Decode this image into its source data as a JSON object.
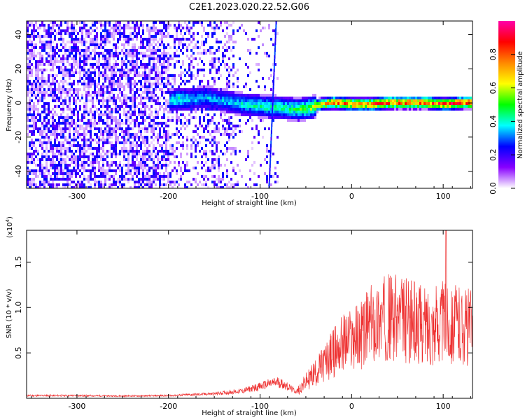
{
  "title": "C2E1.2023.020.22.52.G06",
  "chart_data": [
    {
      "type": "heatmap",
      "xlabel": "Height of straight line (km)",
      "ylabel": "Frequency (Hz)",
      "xlim": [
        -355,
        132
      ],
      "ylim": [
        -50,
        48
      ],
      "x_ticks": [
        -300,
        -200,
        -100,
        0,
        100
      ],
      "x_tick_labels": [
        "-300",
        "-200",
        "-100",
        "0",
        "100"
      ],
      "y_ticks": [
        -40,
        -20,
        0,
        20,
        40
      ],
      "y_tick_labels": [
        "-40",
        "-20",
        "0",
        "20",
        "40"
      ],
      "colorbar": {
        "label": "Normalized spectral amplitude",
        "range": [
          0,
          1
        ],
        "ticks": [
          0.0,
          0.2,
          0.4,
          0.6,
          0.8
        ],
        "tick_labels": [
          "0.0",
          "0.2",
          "0.4",
          "0.6",
          "0.8"
        ],
        "colors": [
          "#ffffff",
          "#8800ff",
          "#0000ff",
          "#00ffff",
          "#00ff00",
          "#ffff00",
          "#ff8800",
          "#ff0000",
          "#ff00aa"
        ]
      },
      "signal_track": [
        {
          "x": -200,
          "freq": 2,
          "amp": 0.35
        },
        {
          "x": -190,
          "freq": 3,
          "amp": 0.4
        },
        {
          "x": -175,
          "freq": 3,
          "amp": 0.3
        },
        {
          "x": -160,
          "freq": 4,
          "amp": 0.3
        },
        {
          "x": -140,
          "freq": 2,
          "amp": 0.3
        },
        {
          "x": -120,
          "freq": 0,
          "amp": 0.35
        },
        {
          "x": -100,
          "freq": -1,
          "amp": 0.4
        },
        {
          "x": -80,
          "freq": -2,
          "amp": 0.4
        },
        {
          "x": -60,
          "freq": -3,
          "amp": 0.45
        },
        {
          "x": -45,
          "freq": -2,
          "amp": 0.55
        },
        {
          "x": -35,
          "freq": 0,
          "amp": 0.65
        },
        {
          "x": -20,
          "freq": 1,
          "amp": 0.85
        },
        {
          "x": 0,
          "freq": 0,
          "amp": 0.85
        },
        {
          "x": 20,
          "freq": 0,
          "amp": 0.8
        },
        {
          "x": 40,
          "freq": 1,
          "amp": 0.9
        },
        {
          "x": 60,
          "freq": 1,
          "amp": 0.9
        },
        {
          "x": 80,
          "freq": 1,
          "amp": 0.9
        },
        {
          "x": 100,
          "freq": 0,
          "amp": 0.85
        },
        {
          "x": 120,
          "freq": 1,
          "amp": 0.9
        },
        {
          "x": 130,
          "freq": 1,
          "amp": 0.9
        }
      ]
    },
    {
      "type": "line",
      "xlabel": "Height of straight line (km)",
      "ylabel": "SNR (10 * v/v)",
      "y_multiplier_label": "(x10",
      "y_multiplier_exp": "4",
      "xlim": [
        -355,
        132
      ],
      "ylim": [
        0,
        18500
      ],
      "x_ticks": [
        -300,
        -200,
        -100,
        0,
        100
      ],
      "x_tick_labels": [
        "-300",
        "-200",
        "-100",
        "0",
        "100"
      ],
      "y_ticks": [
        5000,
        10000,
        15000
      ],
      "y_tick_labels": [
        "0.5",
        "1.0",
        "1.5"
      ],
      "color": "#ee3333",
      "series": [
        {
          "x": [
            -355,
            -300,
            -250,
            -200,
            -150,
            -120,
            -100,
            -90,
            -80,
            -70,
            -60,
            -50,
            -40,
            -30,
            -20,
            -10,
            0,
            10,
            20,
            30,
            40,
            50,
            60,
            70,
            80,
            90,
            100,
            110,
            120,
            132
          ],
          "y": [
            300,
            300,
            250,
            300,
            500,
            800,
            1300,
            1600,
            1800,
            1300,
            700,
            1800,
            2800,
            3800,
            5000,
            6000,
            6500,
            7000,
            8000,
            8500,
            9000,
            8800,
            8600,
            8300,
            8000,
            8100,
            8400,
            8200,
            8000,
            7800
          ]
        }
      ]
    }
  ]
}
